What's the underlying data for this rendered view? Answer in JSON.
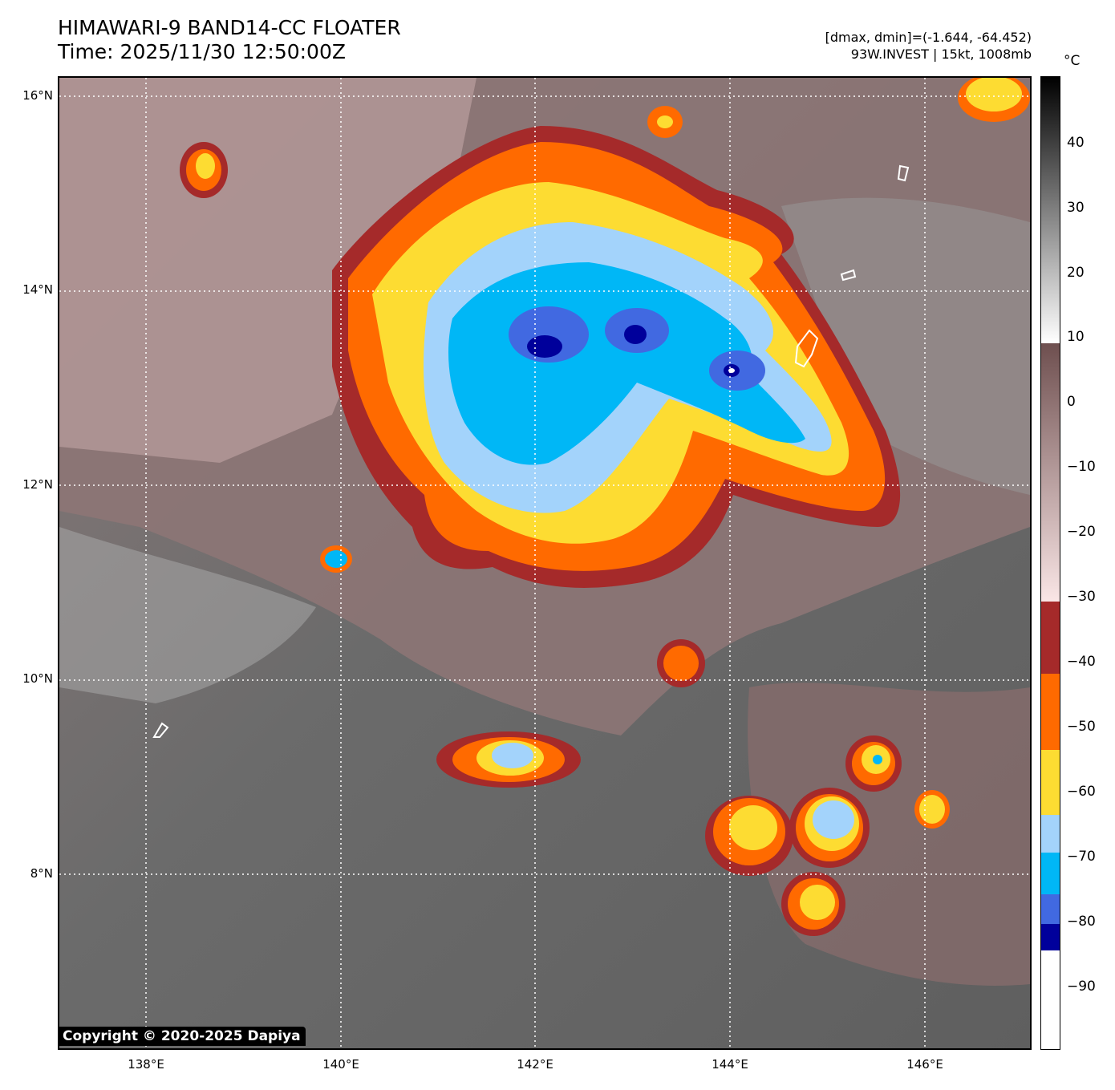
{
  "header": {
    "title_line1": "HIMAWARI-9 BAND14-CC FLOATER",
    "title_line2": "Time: 2025/11/30 12:50:00Z",
    "stats_line1": "[dmax, dmin]=(-1.644, -64.452)",
    "stats_line2": "93W.INVEST | 15kt, 1008mb"
  },
  "map": {
    "latitude_labels": [
      "16°N",
      "14°N",
      "12°N",
      "10°N",
      "8°N"
    ],
    "longitude_labels": [
      "138°E",
      "140°E",
      "142°E",
      "144°E",
      "146°E"
    ],
    "copyright": "Copyright © 2020-2025 Dapiya",
    "colors": {
      "background_gray": "#707070",
      "cloud_pink": "#8d6f6f",
      "band_-30_-40": "#a52a2a",
      "band_-40_-50": "#ff6a00",
      "band_-50_-60": "#fddc32",
      "band_-60_-70": "#a3d3fb",
      "band_-70_-75": "#00b7f6",
      "band_-75_-80": "#4169e1",
      "band_-80_-85": "#00009b",
      "band_below_-85": "#ffffff"
    }
  },
  "colorbar": {
    "unit": "°C",
    "ticks": [
      "40",
      "30",
      "20",
      "10",
      "0",
      "−10",
      "−20",
      "−30",
      "−40",
      "−50",
      "−60",
      "−70",
      "−80",
      "−90"
    ]
  }
}
